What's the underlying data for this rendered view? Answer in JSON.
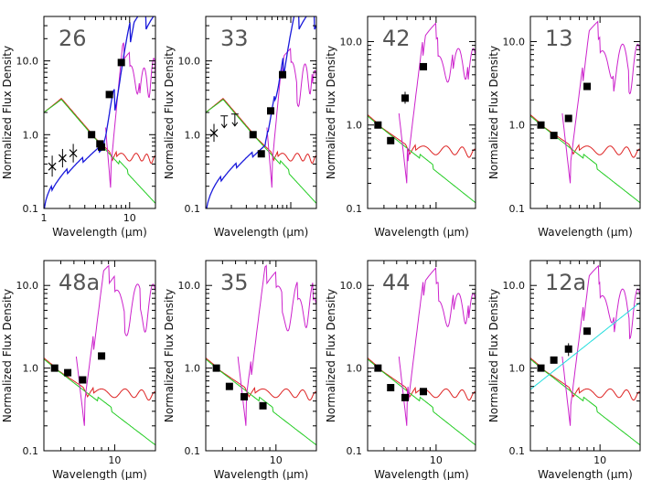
{
  "figure": {
    "ylabel": "Normalized Flux Density",
    "xlabel": "Wavelength (μm)",
    "colors": {
      "red_template": "#dd2222",
      "green_template": "#22cc22",
      "magenta_spectrum": "#cc22cc",
      "blue_spectrum": "#1a1adb",
      "cyan_model": "#22dddd",
      "points": "#000000"
    }
  },
  "chart_data": [
    {
      "type": "scatter",
      "label": "26",
      "xscale": "log",
      "yscale": "log",
      "xlim": [
        1,
        20
      ],
      "ylim": [
        0.1,
        40
      ],
      "x_ticks": [
        "1",
        "10"
      ],
      "y_ticks": [
        "0.1",
        "1.0",
        "10.0"
      ],
      "show_x_tick_labels": true,
      "photometry": [
        {
          "x": 1.25,
          "y": 0.37,
          "marker": "x",
          "err": [
            0.27,
            0.52
          ]
        },
        {
          "x": 1.65,
          "y": 0.48,
          "marker": "x",
          "err": [
            0.36,
            0.64
          ]
        },
        {
          "x": 2.2,
          "y": 0.56,
          "marker": "x",
          "err": [
            0.42,
            0.75
          ]
        },
        {
          "x": 3.6,
          "y": 1.0,
          "marker": "square"
        },
        {
          "x": 4.5,
          "y": 0.75,
          "marker": "square"
        },
        {
          "x": 4.7,
          "y": 0.68,
          "marker": "square"
        },
        {
          "x": 5.8,
          "y": 3.5,
          "marker": "square"
        },
        {
          "x": 8.0,
          "y": 9.5,
          "marker": "square"
        }
      ],
      "series": [
        {
          "style": "red_template"
        },
        {
          "style": "green_template"
        },
        {
          "style": "magenta_spectrum"
        },
        {
          "style": "blue_spectrum"
        }
      ]
    },
    {
      "type": "scatter",
      "label": "33",
      "xscale": "log",
      "yscale": "log",
      "xlim": [
        1,
        20
      ],
      "ylim": [
        0.1,
        40
      ],
      "x_ticks": [
        "1",
        "10"
      ],
      "y_ticks": [
        "0.1",
        "1.0",
        "10.0"
      ],
      "show_x_tick_labels": false,
      "photometry": [
        {
          "x": 1.25,
          "y": 1.05,
          "marker": "x",
          "err": [
            0.8,
            1.4
          ]
        },
        {
          "x": 1.65,
          "y": 1.8,
          "marker": "upper"
        },
        {
          "x": 2.2,
          "y": 1.9,
          "marker": "upper"
        },
        {
          "x": 3.6,
          "y": 1.0,
          "marker": "square"
        },
        {
          "x": 4.5,
          "y": 0.55,
          "marker": "square"
        },
        {
          "x": 5.8,
          "y": 2.1,
          "marker": "square"
        },
        {
          "x": 8.0,
          "y": 6.5,
          "marker": "square"
        }
      ],
      "series": [
        {
          "style": "red_template"
        },
        {
          "style": "green_template"
        },
        {
          "style": "magenta_spectrum"
        },
        {
          "style": "blue_spectrum"
        }
      ]
    },
    {
      "type": "scatter",
      "label": "42",
      "xscale": "log",
      "yscale": "log",
      "xlim": [
        3,
        20
      ],
      "ylim": [
        0.1,
        20
      ],
      "x_ticks": [
        "10"
      ],
      "y_ticks": [
        "0.1",
        "1.0",
        "10.0"
      ],
      "show_x_tick_labels": false,
      "photometry": [
        {
          "x": 3.6,
          "y": 1.0,
          "marker": "square"
        },
        {
          "x": 4.5,
          "y": 0.65,
          "marker": "square"
        },
        {
          "x": 5.8,
          "y": 2.1,
          "marker": "square",
          "err": [
            1.8,
            2.5
          ]
        },
        {
          "x": 8.0,
          "y": 5.0,
          "marker": "square"
        }
      ],
      "series": [
        {
          "style": "red_template"
        },
        {
          "style": "green_template"
        },
        {
          "style": "magenta_spectrum"
        }
      ]
    },
    {
      "type": "scatter",
      "label": "13",
      "xscale": "log",
      "yscale": "log",
      "xlim": [
        3,
        20
      ],
      "ylim": [
        0.1,
        20
      ],
      "x_ticks": [
        "10"
      ],
      "y_ticks": [
        "0.1",
        "1.0",
        "10.0"
      ],
      "show_x_tick_labels": false,
      "photometry": [
        {
          "x": 3.6,
          "y": 1.0,
          "marker": "square"
        },
        {
          "x": 4.5,
          "y": 0.75,
          "marker": "square"
        },
        {
          "x": 5.8,
          "y": 1.2,
          "marker": "square"
        },
        {
          "x": 8.0,
          "y": 2.9,
          "marker": "square"
        }
      ],
      "series": [
        {
          "style": "red_template"
        },
        {
          "style": "green_template"
        },
        {
          "style": "magenta_spectrum"
        }
      ]
    },
    {
      "type": "scatter",
      "label": "48a",
      "xscale": "log",
      "yscale": "log",
      "xlim": [
        3,
        20
      ],
      "ylim": [
        0.1,
        20
      ],
      "x_ticks": [
        "10"
      ],
      "y_ticks": [
        "0.1",
        "1.0",
        "10.0"
      ],
      "show_x_tick_labels": true,
      "photometry": [
        {
          "x": 3.6,
          "y": 1.0,
          "marker": "square"
        },
        {
          "x": 4.5,
          "y": 0.88,
          "marker": "square"
        },
        {
          "x": 5.8,
          "y": 0.72,
          "marker": "square"
        },
        {
          "x": 8.0,
          "y": 1.4,
          "marker": "square"
        }
      ],
      "series": [
        {
          "style": "red_template"
        },
        {
          "style": "green_template"
        },
        {
          "style": "magenta_spectrum"
        }
      ]
    },
    {
      "type": "scatter",
      "label": "35",
      "xscale": "log",
      "yscale": "log",
      "xlim": [
        3,
        20
      ],
      "ylim": [
        0.1,
        20
      ],
      "x_ticks": [
        "10"
      ],
      "y_ticks": [
        "0.1",
        "1.0",
        "10.0"
      ],
      "show_x_tick_labels": true,
      "photometry": [
        {
          "x": 3.6,
          "y": 1.0,
          "marker": "square"
        },
        {
          "x": 4.5,
          "y": 0.6,
          "marker": "square"
        },
        {
          "x": 5.8,
          "y": 0.45,
          "marker": "square"
        },
        {
          "x": 8.0,
          "y": 0.35,
          "marker": "square"
        }
      ],
      "series": [
        {
          "style": "red_template"
        },
        {
          "style": "green_template"
        },
        {
          "style": "magenta_spectrum"
        }
      ]
    },
    {
      "type": "scatter",
      "label": "44",
      "xscale": "log",
      "yscale": "log",
      "xlim": [
        3,
        20
      ],
      "ylim": [
        0.1,
        20
      ],
      "x_ticks": [
        "10"
      ],
      "y_ticks": [
        "0.1",
        "1.0",
        "10.0"
      ],
      "show_x_tick_labels": true,
      "photometry": [
        {
          "x": 3.6,
          "y": 1.0,
          "marker": "square"
        },
        {
          "x": 4.5,
          "y": 0.58,
          "marker": "square"
        },
        {
          "x": 5.8,
          "y": 0.44,
          "marker": "square"
        },
        {
          "x": 8.0,
          "y": 0.52,
          "marker": "square"
        }
      ],
      "series": [
        {
          "style": "red_template"
        },
        {
          "style": "green_template"
        },
        {
          "style": "magenta_spectrum"
        }
      ]
    },
    {
      "type": "scatter",
      "label": "12a",
      "xscale": "log",
      "yscale": "log",
      "xlim": [
        3,
        20
      ],
      "ylim": [
        0.1,
        20
      ],
      "x_ticks": [
        "10"
      ],
      "y_ticks": [
        "0.1",
        "1.0",
        "10.0"
      ],
      "show_x_tick_labels": true,
      "photometry": [
        {
          "x": 3.6,
          "y": 1.0,
          "marker": "square"
        },
        {
          "x": 4.5,
          "y": 1.25,
          "marker": "square"
        },
        {
          "x": 5.8,
          "y": 1.7,
          "marker": "square",
          "err": [
            1.4,
            2.0
          ]
        },
        {
          "x": 8.0,
          "y": 2.8,
          "marker": "square"
        }
      ],
      "series": [
        {
          "style": "red_template"
        },
        {
          "style": "green_template"
        },
        {
          "style": "magenta_spectrum"
        },
        {
          "style": "cyan_model"
        }
      ]
    }
  ]
}
